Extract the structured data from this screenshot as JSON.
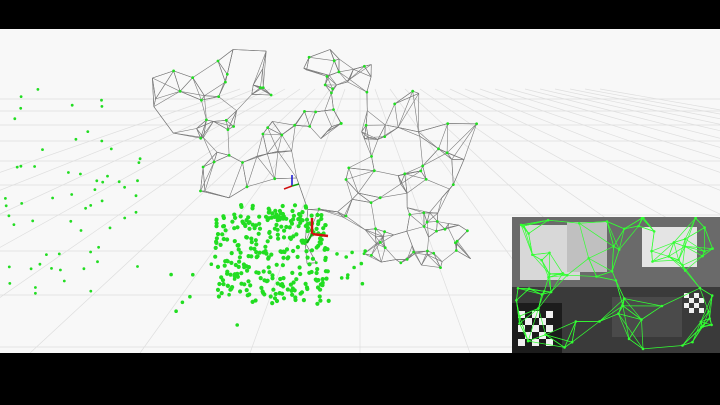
{
  "view": {
    "background_color": "#f8f8f8",
    "grid_color": "#dedede",
    "mesh_color": "#7a7a7a",
    "point_color": "#22dd22",
    "axis_colors": {
      "x": "#d01010",
      "y": "#1010d0",
      "z": "#10a010"
    }
  },
  "camera_feed": {
    "overlay_color": "#33ff33",
    "background_color": "#3a3a3a"
  }
}
